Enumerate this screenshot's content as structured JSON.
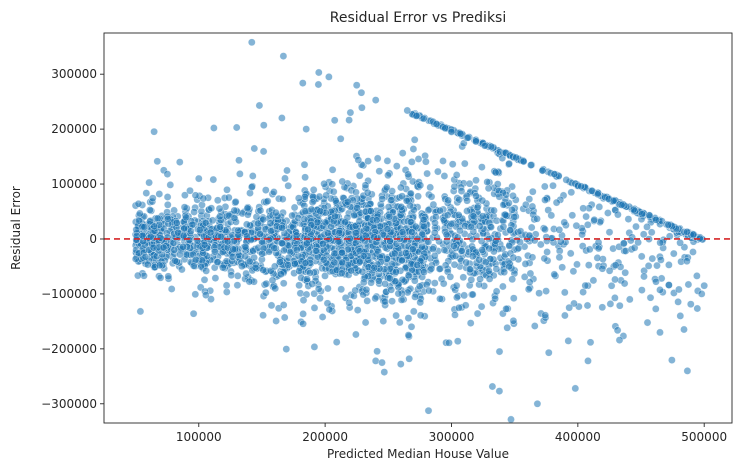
{
  "chart_data": {
    "type": "scatter",
    "title": "Residual Error vs Prediksi",
    "xlabel": "Predicted Median House Value",
    "ylabel": "Residual Error",
    "xlim": [
      25000,
      522000
    ],
    "ylim": [
      -335000,
      375000
    ],
    "x_ticks": [
      100000,
      200000,
      300000,
      400000,
      500000
    ],
    "y_ticks": [
      -300000,
      -200000,
      -100000,
      0,
      100000,
      200000,
      300000
    ],
    "grid": false,
    "legend": "none",
    "reference_line": {
      "y": 0,
      "color": "#d62728",
      "style": "dashed"
    },
    "point_color": "#1f77b4",
    "point_alpha": 0.55,
    "highlighted_points": [
      {
        "x": 142000,
        "y": 358000
      },
      {
        "x": 167000,
        "y": 333000
      },
      {
        "x": 195000,
        "y": 303000
      },
      {
        "x": 203000,
        "y": 295000
      },
      {
        "x": 225000,
        "y": 280000
      },
      {
        "x": 148000,
        "y": 243000
      },
      {
        "x": 265000,
        "y": 234000
      },
      {
        "x": 220000,
        "y": 230000
      },
      {
        "x": 112000,
        "y": 202000
      },
      {
        "x": 130000,
        "y": 203000
      },
      {
        "x": 185000,
        "y": 200000
      },
      {
        "x": 300000,
        "y": 195000
      },
      {
        "x": 85000,
        "y": 140000
      },
      {
        "x": 100000,
        "y": 110000
      },
      {
        "x": 368000,
        "y": -300000
      },
      {
        "x": 398000,
        "y": -272000
      },
      {
        "x": 240000,
        "y": -222000
      },
      {
        "x": 245000,
        "y": -225000
      },
      {
        "x": 408000,
        "y": -222000
      },
      {
        "x": 338000,
        "y": -205000
      },
      {
        "x": 377000,
        "y": -207000
      },
      {
        "x": 298000,
        "y": -189000
      },
      {
        "x": 305000,
        "y": -186000
      },
      {
        "x": 410000,
        "y": -188000
      },
      {
        "x": 465000,
        "y": -170000
      },
      {
        "x": 198000,
        "y": -142000
      },
      {
        "x": 168000,
        "y": -143000
      },
      {
        "x": 232000,
        "y": -152000
      },
      {
        "x": 498000,
        "y": -100000
      },
      {
        "x": 500000,
        "y": -85000
      },
      {
        "x": 480000,
        "y": -92000
      }
    ]
  }
}
